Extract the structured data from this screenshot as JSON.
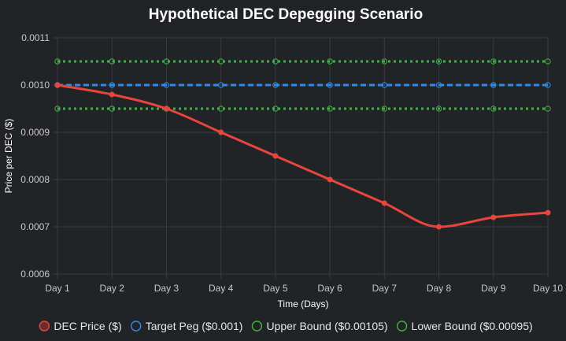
{
  "chart_data": {
    "type": "line",
    "title": "Hypothetical DEC Depegging Scenario",
    "xlabel": "Time (Days)",
    "ylabel": "Price per DEC ($)",
    "categories": [
      "Day 1",
      "Day 2",
      "Day 3",
      "Day 4",
      "Day 5",
      "Day 6",
      "Day 7",
      "Day 8",
      "Day 9",
      "Day 10"
    ],
    "ylim": [
      0.0006,
      0.0011
    ],
    "yticks": [
      "0.0006",
      "0.0007",
      "0.0008",
      "0.0009",
      "0.0010",
      "0.0011"
    ],
    "grid": true,
    "legend_position": "bottom",
    "series": [
      {
        "name": "DEC Price ($)",
        "color": "#e8453c",
        "style": "solid",
        "values": [
          0.001,
          0.00098,
          0.00095,
          0.0009,
          0.00085,
          0.0008,
          0.00075,
          0.0007,
          0.00072,
          0.00073
        ]
      },
      {
        "name": "Target Peg ($0.001)",
        "color": "#2e8ae6",
        "style": "dashed",
        "values": [
          0.001,
          0.001,
          0.001,
          0.001,
          0.001,
          0.001,
          0.001,
          0.001,
          0.001,
          0.001
        ]
      },
      {
        "name": "Upper Bound ($0.00105)",
        "color": "#3fb24a",
        "style": "dotted",
        "values": [
          0.00105,
          0.00105,
          0.00105,
          0.00105,
          0.00105,
          0.00105,
          0.00105,
          0.00105,
          0.00105,
          0.00105
        ]
      },
      {
        "name": "Lower Bound ($0.00095)",
        "color": "#3fb24a",
        "style": "dotted",
        "values": [
          0.00095,
          0.00095,
          0.00095,
          0.00095,
          0.00095,
          0.00095,
          0.00095,
          0.00095,
          0.00095,
          0.00095
        ]
      }
    ]
  },
  "colors": {
    "background": "#222326",
    "grid": "#3a3b3f"
  }
}
